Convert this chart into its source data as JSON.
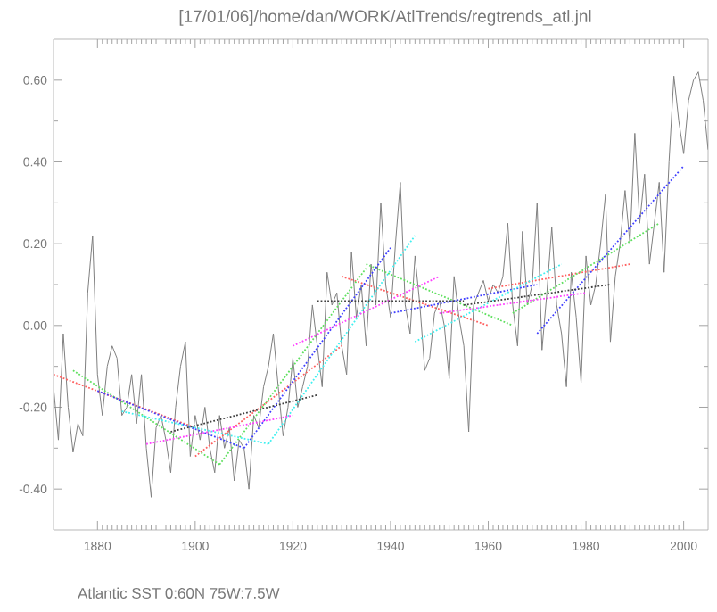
{
  "chart_data": {
    "type": "line",
    "title": "[17/01/06]/home/dan/WORK/AtlTrends/regtrends_atl.jnl",
    "annotations": [
      "Atlantic SST 0:60N 75W:7.5W"
    ],
    "xlim": [
      1871,
      2005
    ],
    "ylim": [
      -0.5,
      0.7
    ],
    "xticks": [
      1880,
      1900,
      1920,
      1940,
      1960,
      1980,
      2000
    ],
    "yticks": [
      {
        "value": -0.4,
        "label": "-0.40"
      },
      {
        "value": -0.2,
        "label": "-0.20"
      },
      {
        "value": 0,
        "label": "0.00"
      },
      {
        "value": 0.2,
        "label": "0.20"
      },
      {
        "value": 0.4,
        "label": "0.40"
      },
      {
        "value": 0.6,
        "label": "0.60"
      }
    ],
    "series": [
      {
        "color": "#808080",
        "line_style": "solid",
        "x": [
          1871,
          1872,
          1873,
          1874,
          1875,
          1876,
          1877,
          1878,
          1879,
          1880,
          1881,
          1882,
          1883,
          1884,
          1885,
          1886,
          1887,
          1888,
          1889,
          1890,
          1891,
          1892,
          1893,
          1894,
          1895,
          1896,
          1897,
          1898,
          1899,
          1900,
          1901,
          1902,
          1903,
          1904,
          1905,
          1906,
          1907,
          1908,
          1909,
          1910,
          1911,
          1912,
          1913,
          1914,
          1915,
          1916,
          1917,
          1918,
          1919,
          1920,
          1921,
          1922,
          1923,
          1924,
          1925,
          1926,
          1927,
          1928,
          1929,
          1930,
          1931,
          1932,
          1933,
          1934,
          1935,
          1936,
          1937,
          1938,
          1939,
          1940,
          1941,
          1942,
          1943,
          1944,
          1945,
          1946,
          1947,
          1948,
          1949,
          1950,
          1951,
          1952,
          1953,
          1954,
          1955,
          1956,
          1957,
          1958,
          1959,
          1960,
          1961,
          1962,
          1963,
          1964,
          1965,
          1966,
          1967,
          1968,
          1969,
          1970,
          1971,
          1972,
          1973,
          1974,
          1975,
          1976,
          1977,
          1978,
          1979,
          1980,
          1981,
          1982,
          1983,
          1984,
          1985,
          1986,
          1987,
          1988,
          1989,
          1990,
          1991,
          1992,
          1993,
          1994,
          1995,
          1996,
          1997,
          1998,
          1999,
          2000,
          2001,
          2002,
          2003,
          2004,
          2005
        ],
        "values": [
          -0.15,
          -0.28,
          -0.02,
          -0.2,
          -0.31,
          -0.24,
          -0.27,
          0.08,
          0.22,
          -0.12,
          -0.22,
          -0.1,
          -0.05,
          -0.08,
          -0.22,
          -0.2,
          -0.12,
          -0.24,
          -0.12,
          -0.3,
          -0.42,
          -0.25,
          -0.22,
          -0.28,
          -0.36,
          -0.2,
          -0.1,
          -0.04,
          -0.32,
          -0.22,
          -0.28,
          -0.2,
          -0.3,
          -0.36,
          -0.22,
          -0.3,
          -0.25,
          -0.38,
          -0.28,
          -0.3,
          -0.4,
          -0.22,
          -0.25,
          -0.15,
          -0.1,
          -0.02,
          -0.15,
          -0.27,
          -0.2,
          -0.08,
          -0.2,
          -0.15,
          -0.1,
          0.05,
          -0.05,
          -0.15,
          0.13,
          0.05,
          0.08,
          -0.05,
          -0.12,
          0.18,
          0.02,
          0.1,
          -0.05,
          0.15,
          0.05,
          0.3,
          0.1,
          0.02,
          0.2,
          0.35,
          0.05,
          -0.02,
          0.17,
          0.05,
          -0.11,
          -0.08,
          0.03,
          0.06,
          0.0,
          -0.13,
          0.12,
          0.02,
          -0.05,
          -0.26,
          0.05,
          0.08,
          0.11,
          0.06,
          0.1,
          0.08,
          0.12,
          0.25,
          0.05,
          -0.05,
          0.23,
          0.05,
          0.1,
          0.3,
          -0.06,
          0.08,
          0.24,
          0.05,
          -0.02,
          -0.15,
          0.13,
          0.02,
          -0.14,
          0.17,
          0.05,
          0.1,
          0.2,
          0.32,
          -0.04,
          0.12,
          0.2,
          0.33,
          0.2,
          0.47,
          0.25,
          0.37,
          0.15,
          0.25,
          0.35,
          0.13,
          0.4,
          0.61,
          0.5,
          0.42,
          0.55,
          0.6,
          0.62,
          0.55,
          0.43
        ]
      },
      {
        "type": "line",
        "color": "#ff6060",
        "line_style": "dotted",
        "x": [
          1871,
          1900
        ],
        "values": [
          -0.12,
          -0.25
        ]
      },
      {
        "type": "line",
        "color": "#ff6060",
        "line_style": "dotted",
        "x": [
          1900,
          1930
        ],
        "values": [
          -0.32,
          -0.05
        ]
      },
      {
        "type": "line",
        "color": "#ff6060",
        "line_style": "dotted",
        "x": [
          1930,
          1960
        ],
        "values": [
          0.12,
          0.0
        ]
      },
      {
        "type": "line",
        "color": "#ff6060",
        "line_style": "dotted",
        "x": [
          1960,
          1989
        ],
        "values": [
          0.09,
          0.15
        ]
      },
      {
        "type": "line",
        "color": "#60e060",
        "line_style": "dotted",
        "x": [
          1875,
          1905
        ],
        "values": [
          -0.11,
          -0.34
        ]
      },
      {
        "type": "line",
        "color": "#60e060",
        "line_style": "dotted",
        "x": [
          1905,
          1935
        ],
        "values": [
          -0.34,
          0.14
        ]
      },
      {
        "type": "line",
        "color": "#60e060",
        "line_style": "dotted",
        "x": [
          1935,
          1965
        ],
        "values": [
          0.15,
          0.0
        ]
      },
      {
        "type": "line",
        "color": "#60e060",
        "line_style": "dotted",
        "x": [
          1965,
          1995
        ],
        "values": [
          0.03,
          0.25
        ]
      },
      {
        "type": "line",
        "color": "#4040ff",
        "line_style": "dotted",
        "x": [
          1880,
          1910
        ],
        "values": [
          -0.16,
          -0.3
        ]
      },
      {
        "type": "line",
        "color": "#4040ff",
        "line_style": "dotted",
        "x": [
          1910,
          1940
        ],
        "values": [
          -0.3,
          0.19
        ]
      },
      {
        "type": "line",
        "color": "#4040ff",
        "line_style": "dotted",
        "x": [
          1940,
          1970
        ],
        "values": [
          0.03,
          0.1
        ]
      },
      {
        "type": "line",
        "color": "#4040ff",
        "line_style": "dotted",
        "x": [
          1970,
          2000
        ],
        "values": [
          -0.02,
          0.39
        ]
      },
      {
        "type": "line",
        "color": "#40f0f0",
        "line_style": "dotted",
        "x": [
          1885,
          1915
        ],
        "values": [
          -0.21,
          -0.29
        ]
      },
      {
        "type": "line",
        "color": "#40f0f0",
        "line_style": "dotted",
        "x": [
          1915,
          1945
        ],
        "values": [
          -0.29,
          0.22
        ]
      },
      {
        "type": "line",
        "color": "#40f0f0",
        "line_style": "dotted",
        "x": [
          1945,
          1975
        ],
        "values": [
          -0.04,
          0.15
        ]
      },
      {
        "type": "line",
        "color": "#ff40ff",
        "line_style": "dotted",
        "x": [
          1890,
          1920
        ],
        "values": [
          -0.29,
          -0.22
        ]
      },
      {
        "type": "line",
        "color": "#ff40ff",
        "line_style": "dotted",
        "x": [
          1920,
          1950
        ],
        "values": [
          -0.05,
          0.12
        ]
      },
      {
        "type": "line",
        "color": "#ff40ff",
        "line_style": "dotted",
        "x": [
          1950,
          1980
        ],
        "values": [
          0.03,
          0.08
        ]
      },
      {
        "type": "line",
        "color": "#404040",
        "line_style": "dotted",
        "x": [
          1895,
          1925
        ],
        "values": [
          -0.26,
          -0.17
        ]
      },
      {
        "type": "line",
        "color": "#404040",
        "line_style": "dotted",
        "x": [
          1925,
          1955
        ],
        "values": [
          0.06,
          0.06
        ]
      },
      {
        "type": "line",
        "color": "#404040",
        "line_style": "dotted",
        "x": [
          1955,
          1985
        ],
        "values": [
          0.05,
          0.1
        ]
      }
    ]
  }
}
